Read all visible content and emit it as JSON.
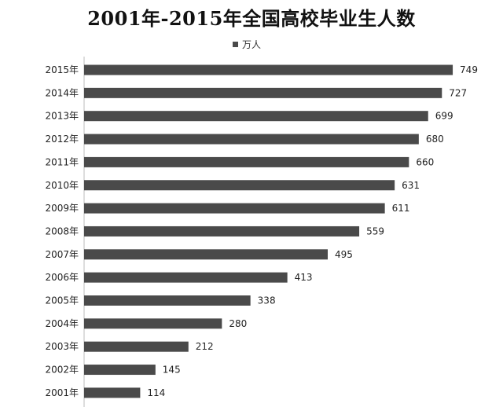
{
  "chart_data": {
    "type": "bar",
    "orientation": "horizontal",
    "title": "2001年-2015年全国高校毕业生人数",
    "categories": [
      "2015年",
      "2014年",
      "2013年",
      "2012年",
      "2011年",
      "2010年",
      "2009年",
      "2008年",
      "2007年",
      "2006年",
      "2005年",
      "2004年",
      "2003年",
      "2002年",
      "2001年"
    ],
    "series": [
      {
        "name": "万人",
        "values": [
          749,
          727,
          699,
          680,
          660,
          631,
          611,
          559,
          495,
          413,
          338,
          280,
          212,
          145,
          114
        ]
      }
    ],
    "xlim": [
      0,
      800
    ],
    "legend_position": "top",
    "grid": false,
    "bar_color": "#4a4a4a"
  }
}
